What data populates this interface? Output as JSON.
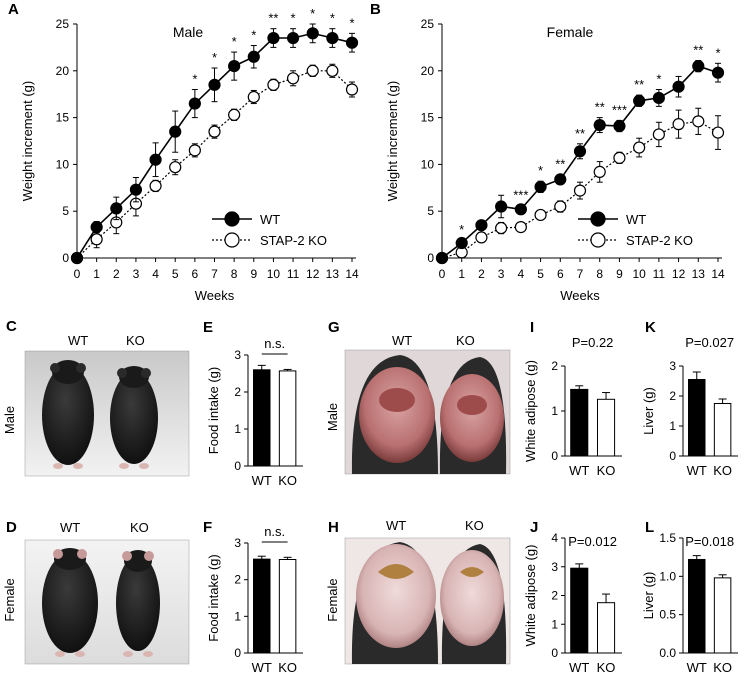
{
  "photos": {
    "C": {
      "label": "C",
      "wt": "WT",
      "ko": "KO",
      "sex": "Male"
    },
    "D": {
      "label": "D",
      "wt": "WT",
      "ko": "KO",
      "sex": "Female"
    },
    "G": {
      "label": "G",
      "wt": "WT",
      "ko": "KO",
      "sex": "Male"
    },
    "H": {
      "label": "H",
      "wt": "WT",
      "ko": "KO",
      "sex": "Female"
    }
  },
  "chart_data": [
    {
      "panel": "A",
      "type": "line",
      "title": "Male",
      "xlabel": "Weeks",
      "ylabel": "Weight increment (g)",
      "x": [
        0,
        1,
        2,
        3,
        4,
        5,
        6,
        7,
        8,
        9,
        10,
        11,
        12,
        13,
        14
      ],
      "xlim": [
        0,
        14
      ],
      "ylim": [
        0,
        25
      ],
      "yticks": [
        0,
        5,
        10,
        15,
        20,
        25
      ],
      "series": [
        {
          "name": "WT",
          "marker": "filled",
          "line": "solid",
          "values": [
            0,
            3.3,
            5.3,
            7.3,
            10.5,
            13.5,
            16.5,
            18.5,
            20.5,
            21.5,
            23.5,
            23.5,
            24,
            23.5,
            23
          ],
          "err": [
            0,
            0.6,
            1.2,
            1.3,
            1.8,
            2.2,
            1.5,
            1.8,
            1.5,
            1.2,
            1.0,
            1.0,
            1.0,
            1.0,
            1.0
          ]
        },
        {
          "name": "STAP-2 KO",
          "marker": "open",
          "line": "dotted",
          "values": [
            0,
            2,
            3.8,
            5.8,
            7.7,
            9.7,
            11.5,
            13.5,
            15.3,
            17.2,
            18.5,
            19.2,
            20,
            20,
            18
          ],
          "err": [
            0,
            0.9,
            1.2,
            1.3,
            0.6,
            0.8,
            0.7,
            0.7,
            0.6,
            0.7,
            0.6,
            0.8,
            0.6,
            0.7,
            0.8
          ]
        }
      ],
      "significance": [
        {
          "x": 6,
          "label": "*"
        },
        {
          "x": 7,
          "label": "*"
        },
        {
          "x": 8,
          "label": "*"
        },
        {
          "x": 9,
          "label": "*"
        },
        {
          "x": 10,
          "label": "**"
        },
        {
          "x": 11,
          "label": "*"
        },
        {
          "x": 12,
          "label": "*"
        },
        {
          "x": 13,
          "label": "*"
        },
        {
          "x": 14,
          "label": "*"
        }
      ],
      "legend": "bottom-right"
    },
    {
      "panel": "B",
      "type": "line",
      "title": "Female",
      "xlabel": "Weeks",
      "ylabel": "Weight increment (g)",
      "x": [
        0,
        1,
        2,
        3,
        4,
        5,
        6,
        7,
        8,
        9,
        10,
        11,
        12,
        13,
        14
      ],
      "xlim": [
        0,
        14
      ],
      "ylim": [
        0,
        25
      ],
      "yticks": [
        0,
        5,
        10,
        15,
        20,
        25
      ],
      "series": [
        {
          "name": "WT",
          "marker": "filled",
          "line": "solid",
          "values": [
            0,
            1.6,
            3.5,
            5.5,
            5.2,
            7.6,
            8.4,
            11.4,
            14.2,
            14.1,
            16.8,
            17.1,
            18.3,
            20.5,
            19.8
          ],
          "err": [
            0,
            0.3,
            0.5,
            1.2,
            0.4,
            0.6,
            0.5,
            0.8,
            0.8,
            0.6,
            0.6,
            0.9,
            1.1,
            0.6,
            1.0
          ]
        },
        {
          "name": "STAP-2 KO",
          "marker": "open",
          "line": "dotted",
          "values": [
            0,
            0.6,
            2.2,
            3.2,
            3.3,
            4.6,
            5.5,
            7.2,
            9.2,
            10.7,
            11.8,
            13.2,
            14.3,
            14.6,
            13.4
          ],
          "err": [
            0,
            0.3,
            0.5,
            0.6,
            0.3,
            0.4,
            0.6,
            0.9,
            1.1,
            0.6,
            1.0,
            1.3,
            1.5,
            1.4,
            1.8
          ]
        }
      ],
      "significance": [
        {
          "x": 1,
          "label": "*"
        },
        {
          "x": 4,
          "label": "***"
        },
        {
          "x": 5,
          "label": "*"
        },
        {
          "x": 6,
          "label": "**"
        },
        {
          "x": 7,
          "label": "**"
        },
        {
          "x": 8,
          "label": "**"
        },
        {
          "x": 9,
          "label": "***"
        },
        {
          "x": 10,
          "label": "**"
        },
        {
          "x": 11,
          "label": "*"
        },
        {
          "x": 13,
          "label": "**"
        },
        {
          "x": 14,
          "label": "*"
        }
      ],
      "legend": "bottom-right"
    },
    {
      "panel": "E",
      "type": "bar",
      "categories": [
        "WT",
        "KO"
      ],
      "values": [
        2.6,
        2.57
      ],
      "err": [
        0.12,
        0.04
      ],
      "ylabel": "Food intake (g)",
      "ylim": [
        0,
        3
      ],
      "yticks": [
        0,
        1,
        2,
        3
      ],
      "annotation": "n.s."
    },
    {
      "panel": "F",
      "type": "bar",
      "categories": [
        "WT",
        "KO"
      ],
      "values": [
        2.56,
        2.55
      ],
      "err": [
        0.08,
        0.06
      ],
      "ylabel": "Food intake (g)",
      "ylim": [
        0,
        3
      ],
      "yticks": [
        0,
        1,
        2,
        3
      ],
      "annotation": "n.s."
    },
    {
      "panel": "I",
      "type": "bar",
      "categories": [
        "WT",
        "KO"
      ],
      "values": [
        1.48,
        1.26
      ],
      "err": [
        0.08,
        0.15
      ],
      "ylabel": "White adipose (g)",
      "ylim": [
        0,
        2
      ],
      "yticks": [
        0,
        1,
        2
      ],
      "annotation": "P=0.22"
    },
    {
      "panel": "J",
      "type": "bar",
      "categories": [
        "WT",
        "KO"
      ],
      "values": [
        2.95,
        1.75
      ],
      "err": [
        0.15,
        0.3
      ],
      "ylabel": "White adipose (g)",
      "ylim": [
        0,
        4
      ],
      "yticks": [
        0,
        1,
        2,
        3,
        4
      ],
      "annotation": "P=0.012"
    },
    {
      "panel": "K",
      "type": "bar",
      "categories": [
        "WT",
        "KO"
      ],
      "values": [
        2.55,
        1.75
      ],
      "err": [
        0.25,
        0.15
      ],
      "ylabel": "Liver (g)",
      "ylim": [
        0,
        3
      ],
      "yticks": [
        0,
        1,
        2,
        3
      ],
      "annotation": "P=0.027"
    },
    {
      "panel": "L",
      "type": "bar",
      "categories": [
        "WT",
        "KO"
      ],
      "values": [
        1.22,
        0.98
      ],
      "err": [
        0.05,
        0.04
      ],
      "ylabel": "Liver (g)",
      "ylim": [
        0,
        1.5
      ],
      "yticks": [
        "0.0",
        "0.5",
        "1.0",
        "1.5"
      ],
      "annotation": "P=0.018"
    }
  ]
}
